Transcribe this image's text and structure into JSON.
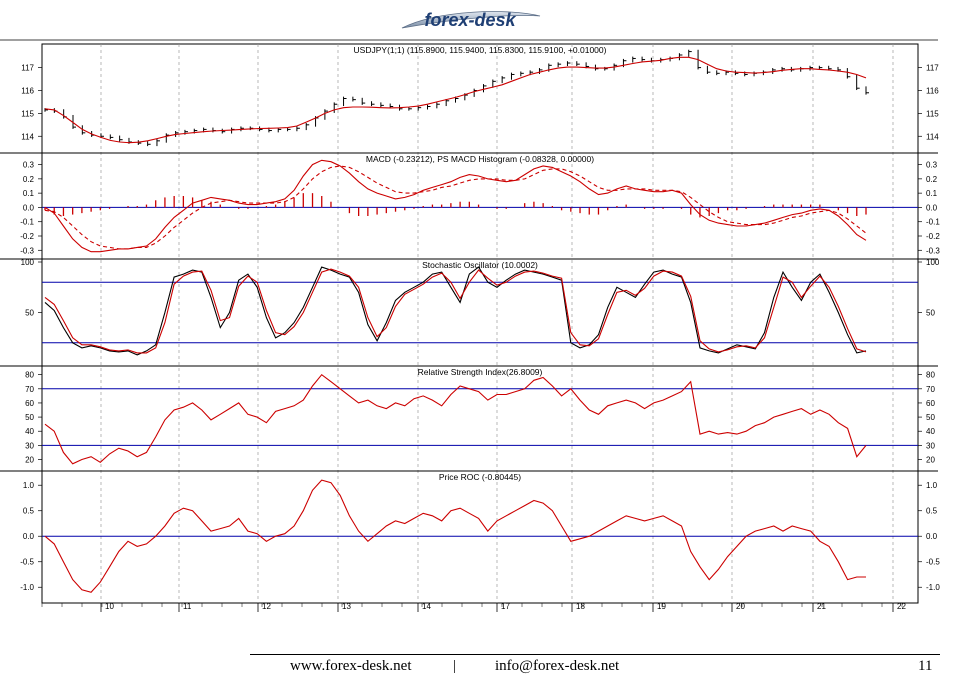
{
  "logo": {
    "text": "forex-desk"
  },
  "footer": {
    "website": "www.forex-desk.net",
    "separator": "|",
    "email": "info@forex-desk.net",
    "page_number": "11"
  },
  "colors": {
    "indicator": "#cc0000",
    "reference_line": "#0000aa",
    "price_bars": "#000000",
    "grid": "#9a9a9a"
  },
  "chart_data": [
    {
      "type": "line",
      "title": "USDJPY(1;1) (115.8900, 115.9400, 115.8300, 115.9100, +0.01000)",
      "x_ticks": [
        "10",
        "11",
        "12",
        "13",
        "14",
        "17",
        "18",
        "19",
        "20",
        "21",
        "22"
      ],
      "y_ticks": [
        "117",
        "116",
        "115",
        "114"
      ],
      "ylim": [
        113.4,
        117.9
      ],
      "series": [
        {
          "style": "price-bars",
          "values": [
            115.15,
            115.1,
            114.85,
            114.4,
            114.15,
            114.05,
            114.0,
            113.95,
            113.85,
            113.75,
            113.7,
            113.65,
            113.8,
            114.05,
            114.15,
            114.2,
            114.25,
            114.3,
            114.25,
            114.2,
            114.3,
            114.35,
            114.35,
            114.3,
            114.25,
            114.3,
            114.3,
            114.35,
            114.5,
            114.8,
            115.1,
            115.4,
            115.65,
            115.6,
            115.45,
            115.4,
            115.35,
            115.3,
            115.2,
            115.2,
            115.25,
            115.3,
            115.4,
            115.55,
            115.65,
            115.8,
            116.0,
            116.2,
            116.4,
            116.55,
            116.7,
            116.75,
            116.8,
            116.9,
            117.1,
            117.15,
            117.2,
            117.15,
            117.05,
            116.95,
            116.95,
            117.1,
            117.3,
            117.4,
            117.35,
            117.3,
            117.35,
            117.4,
            117.55,
            117.7,
            117.0,
            116.8,
            116.75,
            116.8,
            116.75,
            116.7,
            116.75,
            116.8,
            116.9,
            116.95,
            116.9,
            116.95,
            117.0,
            117.0,
            116.95,
            116.9,
            116.6,
            116.1,
            115.9
          ]
        },
        {
          "style": "moving-average",
          "values": [
            115.2,
            115.15,
            114.9,
            114.6,
            114.3,
            114.1,
            113.95,
            113.82,
            113.75,
            113.72,
            113.74,
            113.8,
            113.9,
            114.0,
            114.08,
            114.12,
            114.16,
            114.2,
            114.23,
            114.25,
            114.27,
            114.3,
            114.32,
            114.34,
            114.35,
            114.36,
            114.38,
            114.45,
            114.62,
            114.8,
            115.0,
            115.15,
            115.25,
            115.28,
            115.28,
            115.27,
            115.25,
            115.24,
            115.25,
            115.28,
            115.32,
            115.4,
            115.5,
            115.6,
            115.7,
            115.82,
            115.95,
            116.05,
            116.15,
            116.25,
            116.4,
            116.55,
            116.7,
            116.8,
            116.9,
            116.98,
            117.02,
            117.02,
            117.0,
            116.98,
            116.98,
            117.02,
            117.1,
            117.18,
            117.25,
            117.28,
            117.32,
            117.4,
            117.45,
            117.45,
            117.35,
            117.15,
            116.95,
            116.85,
            116.8,
            116.78,
            116.76,
            116.78,
            116.82,
            116.88,
            116.92,
            116.95,
            116.95,
            116.92,
            116.9,
            116.85,
            116.8,
            116.7,
            116.55
          ]
        }
      ]
    },
    {
      "type": "line",
      "title": "MACD (-0.23212), PS MACD Histogram (-0.08328, 0.00000)",
      "y_ticks": [
        "0.3",
        "0.2",
        "0.1",
        "0.0",
        "-0.1",
        "-0.2",
        "-0.3"
      ],
      "ylim": [
        -0.34,
        0.36
      ],
      "reference_lines": [
        0.0
      ],
      "series": [
        {
          "style": "solid",
          "values": [
            0.0,
            -0.04,
            -0.13,
            -0.22,
            -0.28,
            -0.31,
            -0.31,
            -0.3,
            -0.29,
            -0.29,
            -0.28,
            -0.27,
            -0.22,
            -0.14,
            -0.07,
            -0.02,
            0.03,
            0.05,
            0.07,
            0.06,
            0.05,
            0.03,
            0.02,
            0.02,
            0.03,
            0.04,
            0.06,
            0.12,
            0.22,
            0.3,
            0.33,
            0.32,
            0.29,
            0.24,
            0.18,
            0.13,
            0.1,
            0.08,
            0.06,
            0.07,
            0.09,
            0.12,
            0.14,
            0.16,
            0.18,
            0.21,
            0.23,
            0.22,
            0.2,
            0.19,
            0.18,
            0.19,
            0.23,
            0.27,
            0.29,
            0.28,
            0.25,
            0.22,
            0.18,
            0.13,
            0.09,
            0.1,
            0.13,
            0.15,
            0.13,
            0.12,
            0.11,
            0.11,
            0.12,
            0.1,
            0.02,
            -0.05,
            -0.09,
            -0.11,
            -0.12,
            -0.13,
            -0.13,
            -0.12,
            -0.11,
            -0.09,
            -0.07,
            -0.05,
            -0.04,
            -0.02,
            -0.01,
            -0.02,
            -0.06,
            -0.12,
            -0.19,
            -0.23
          ]
        },
        {
          "style": "dashed",
          "values": [
            -0.02,
            -0.03,
            -0.07,
            -0.13,
            -0.19,
            -0.24,
            -0.27,
            -0.28,
            -0.29,
            -0.29,
            -0.28,
            -0.28,
            -0.25,
            -0.2,
            -0.14,
            -0.09,
            -0.04,
            0.0,
            0.03,
            0.04,
            0.05,
            0.04,
            0.03,
            0.03,
            0.03,
            0.03,
            0.04,
            0.07,
            0.13,
            0.2,
            0.25,
            0.28,
            0.29,
            0.28,
            0.25,
            0.21,
            0.17,
            0.14,
            0.11,
            0.1,
            0.1,
            0.11,
            0.12,
            0.14,
            0.15,
            0.17,
            0.19,
            0.2,
            0.2,
            0.2,
            0.19,
            0.19,
            0.2,
            0.23,
            0.26,
            0.27,
            0.27,
            0.25,
            0.22,
            0.18,
            0.14,
            0.12,
            0.12,
            0.13,
            0.13,
            0.13,
            0.12,
            0.12,
            0.12,
            0.11,
            0.07,
            0.02,
            -0.03,
            -0.07,
            -0.1,
            -0.11,
            -0.12,
            -0.12,
            -0.12,
            -0.11,
            -0.09,
            -0.07,
            -0.06,
            -0.04,
            -0.03,
            -0.02,
            -0.04,
            -0.08,
            -0.13,
            -0.18
          ]
        },
        {
          "style": "histogram",
          "values": [
            -0.02,
            -0.05,
            -0.06,
            -0.05,
            -0.04,
            -0.03,
            -0.02,
            -0.01,
            0.0,
            0.01,
            0.01,
            0.02,
            0.05,
            0.07,
            0.08,
            0.08,
            0.07,
            0.05,
            0.04,
            0.02,
            0.0,
            -0.01,
            -0.01,
            0.0,
            0.01,
            0.02,
            0.04,
            0.07,
            0.1,
            0.1,
            0.08,
            0.04,
            0.0,
            -0.04,
            -0.06,
            -0.06,
            -0.05,
            -0.04,
            -0.03,
            -0.02,
            -0.01,
            0.01,
            0.02,
            0.02,
            0.03,
            0.04,
            0.04,
            0.02,
            0.0,
            -0.01,
            -0.01,
            0.0,
            0.03,
            0.04,
            0.03,
            0.01,
            -0.02,
            -0.03,
            -0.04,
            -0.05,
            -0.05,
            -0.02,
            0.01,
            0.02,
            0.0,
            -0.01,
            -0.01,
            -0.01,
            0.0,
            -0.01,
            -0.05,
            -0.07,
            -0.06,
            -0.04,
            -0.02,
            -0.02,
            -0.01,
            0.0,
            0.01,
            0.02,
            0.02,
            0.02,
            0.02,
            0.02,
            0.02,
            0.0,
            -0.02,
            -0.04,
            -0.06,
            -0.05
          ]
        }
      ]
    },
    {
      "type": "line",
      "title": "Stochastic Oscillator (10.0002)",
      "y_ticks": [
        "100",
        "50"
      ],
      "ylim": [
        0,
        100
      ],
      "reference_lines": [
        80,
        20
      ],
      "series": [
        {
          "style": "black",
          "values": [
            60,
            52,
            35,
            20,
            15,
            17,
            15,
            12,
            11,
            12,
            8,
            12,
            18,
            50,
            85,
            88,
            92,
            90,
            65,
            35,
            50,
            82,
            88,
            75,
            45,
            25,
            30,
            40,
            55,
            75,
            95,
            92,
            88,
            85,
            70,
            38,
            22,
            40,
            62,
            70,
            75,
            80,
            88,
            90,
            75,
            60,
            88,
            95,
            80,
            75,
            82,
            88,
            92,
            90,
            88,
            85,
            82,
            20,
            15,
            18,
            28,
            55,
            75,
            70,
            65,
            78,
            90,
            92,
            88,
            85,
            60,
            15,
            12,
            10,
            14,
            18,
            16,
            14,
            30,
            65,
            90,
            75,
            62,
            80,
            88,
            70,
            50,
            28,
            10,
            12
          ]
        },
        {
          "style": "red",
          "values": [
            65,
            58,
            42,
            25,
            18,
            18,
            16,
            13,
            12,
            13,
            10,
            10,
            15,
            40,
            78,
            86,
            90,
            91,
            72,
            42,
            45,
            76,
            86,
            80,
            52,
            30,
            28,
            36,
            50,
            70,
            90,
            93,
            90,
            86,
            75,
            45,
            26,
            35,
            56,
            68,
            73,
            78,
            85,
            89,
            80,
            64,
            80,
            92,
            84,
            77,
            80,
            86,
            90,
            91,
            89,
            86,
            84,
            30,
            18,
            17,
            24,
            48,
            70,
            72,
            67,
            74,
            86,
            91,
            90,
            86,
            66,
            22,
            14,
            11,
            13,
            16,
            17,
            15,
            25,
            55,
            85,
            80,
            65,
            76,
            86,
            75,
            56,
            34,
            14,
            11
          ]
        }
      ]
    },
    {
      "type": "line",
      "title": "Relative Strength Index(26.8009)",
      "y_ticks": [
        "80",
        "70",
        "60",
        "50",
        "40",
        "30",
        "20"
      ],
      "ylim": [
        14,
        84
      ],
      "reference_lines": [
        70,
        30
      ],
      "series": [
        {
          "style": "solid",
          "values": [
            45,
            40,
            25,
            17,
            20,
            22,
            18,
            24,
            28,
            26,
            22,
            25,
            36,
            48,
            55,
            57,
            60,
            55,
            48,
            52,
            56,
            60,
            52,
            50,
            46,
            54,
            56,
            58,
            62,
            72,
            80,
            75,
            70,
            65,
            60,
            62,
            58,
            56,
            60,
            58,
            63,
            65,
            62,
            58,
            66,
            72,
            70,
            68,
            62,
            66,
            66,
            68,
            70,
            76,
            78,
            72,
            65,
            70,
            62,
            55,
            52,
            58,
            60,
            62,
            60,
            56,
            60,
            62,
            65,
            68,
            75,
            38,
            40,
            38,
            39,
            38,
            40,
            44,
            46,
            50,
            52,
            54,
            56,
            52,
            55,
            52,
            46,
            42,
            22,
            30
          ]
        }
      ]
    },
    {
      "type": "line",
      "title": "Price ROC (-0.80445)",
      "y_ticks": [
        "1.0",
        "0.5",
        "0.0",
        "-0.5",
        "-1.0"
      ],
      "ylim": [
        -1.25,
        1.22
      ],
      "reference_lines": [
        0.0
      ],
      "series": [
        {
          "style": "solid",
          "values": [
            0.0,
            -0.15,
            -0.5,
            -0.85,
            -1.05,
            -1.1,
            -0.9,
            -0.6,
            -0.3,
            -0.1,
            -0.2,
            -0.15,
            0.0,
            0.2,
            0.45,
            0.55,
            0.5,
            0.3,
            0.1,
            0.15,
            0.2,
            0.35,
            0.1,
            0.05,
            -0.1,
            0.0,
            0.05,
            0.2,
            0.5,
            0.9,
            1.1,
            1.05,
            0.8,
            0.4,
            0.1,
            -0.1,
            0.05,
            0.2,
            0.3,
            0.25,
            0.35,
            0.45,
            0.4,
            0.3,
            0.5,
            0.55,
            0.45,
            0.35,
            0.1,
            0.3,
            0.4,
            0.5,
            0.6,
            0.7,
            0.65,
            0.5,
            0.2,
            -0.1,
            -0.05,
            0.0,
            0.1,
            0.2,
            0.3,
            0.4,
            0.35,
            0.3,
            0.35,
            0.4,
            0.3,
            0.2,
            -0.3,
            -0.6,
            -0.85,
            -0.65,
            -0.4,
            -0.2,
            0.0,
            0.1,
            0.15,
            0.2,
            0.1,
            0.2,
            0.15,
            0.1,
            -0.1,
            -0.2,
            -0.5,
            -0.85,
            -0.8,
            -0.8
          ]
        }
      ]
    }
  ]
}
